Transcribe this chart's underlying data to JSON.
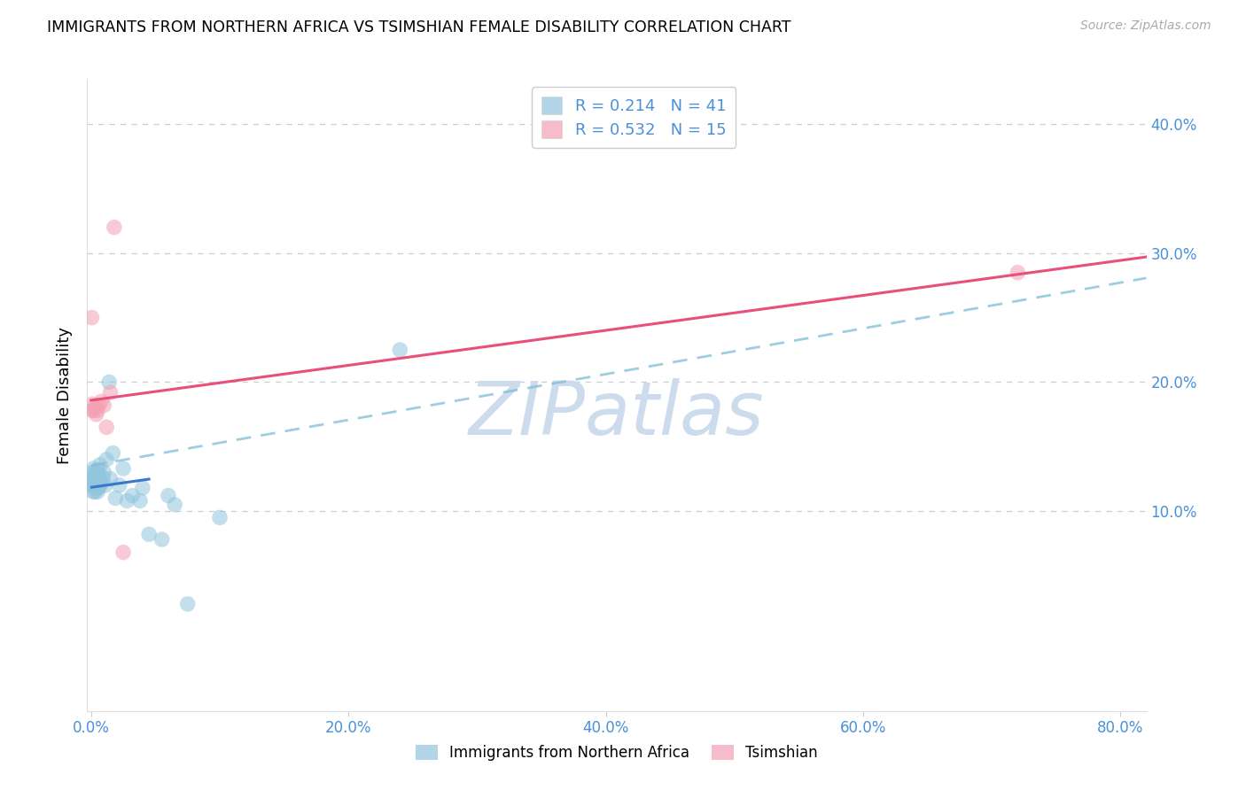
{
  "title": "IMMIGRANTS FROM NORTHERN AFRICA VS TSIMSHIAN FEMALE DISABILITY CORRELATION CHART",
  "source": "Source: ZipAtlas.com",
  "ylabel": "Female Disability",
  "legend_label1": "Immigrants from Northern Africa",
  "legend_label2": "Tsimshian",
  "R1": 0.214,
  "N1": 41,
  "R2": 0.532,
  "N2": 15,
  "xlim": [
    -0.003,
    0.82
  ],
  "ylim": [
    -0.055,
    0.435
  ],
  "yticks_right": [
    0.1,
    0.2,
    0.3,
    0.4
  ],
  "xticks": [
    0.0,
    0.2,
    0.4,
    0.6,
    0.8
  ],
  "color_blue": "#92c5de",
  "color_pink": "#f4a0b5",
  "color_line_blue": "#3a78c9",
  "color_line_pink": "#e8507a",
  "color_dashed": "#7fbcd8",
  "color_axis_label": "#4a90d9",
  "watermark": "ZIPatlas",
  "watermark_color": "#ccdcec",
  "background_color": "#ffffff",
  "grid_color": "#c8c8c8",
  "blue_scatter_x": [
    0.0005,
    0.001,
    0.001,
    0.0015,
    0.002,
    0.002,
    0.002,
    0.003,
    0.003,
    0.003,
    0.004,
    0.004,
    0.005,
    0.005,
    0.005,
    0.006,
    0.006,
    0.007,
    0.007,
    0.008,
    0.009,
    0.01,
    0.011,
    0.012,
    0.014,
    0.015,
    0.017,
    0.019,
    0.022,
    0.025,
    0.028,
    0.032,
    0.038,
    0.04,
    0.045,
    0.055,
    0.06,
    0.065,
    0.075,
    0.1,
    0.24
  ],
  "blue_scatter_y": [
    0.125,
    0.12,
    0.13,
    0.115,
    0.12,
    0.125,
    0.133,
    0.115,
    0.122,
    0.128,
    0.118,
    0.13,
    0.115,
    0.125,
    0.132,
    0.118,
    0.128,
    0.12,
    0.136,
    0.122,
    0.126,
    0.13,
    0.12,
    0.14,
    0.2,
    0.125,
    0.145,
    0.11,
    0.12,
    0.133,
    0.108,
    0.112,
    0.108,
    0.118,
    0.082,
    0.078,
    0.112,
    0.105,
    0.028,
    0.095,
    0.225
  ],
  "pink_scatter_x": [
    0.0005,
    0.001,
    0.001,
    0.002,
    0.003,
    0.004,
    0.005,
    0.006,
    0.008,
    0.01,
    0.012,
    0.015,
    0.018,
    0.025,
    0.72
  ],
  "pink_scatter_y": [
    0.25,
    0.178,
    0.183,
    0.178,
    0.18,
    0.175,
    0.178,
    0.182,
    0.185,
    0.182,
    0.165,
    0.192,
    0.32,
    0.068,
    0.285
  ],
  "blue_line_x0": 0.0005,
  "blue_line_x1": 0.045,
  "pink_line_x0": 0.0,
  "pink_line_x1": 0.82,
  "dashed_line_x0": 0.0,
  "dashed_line_x1": 0.82
}
